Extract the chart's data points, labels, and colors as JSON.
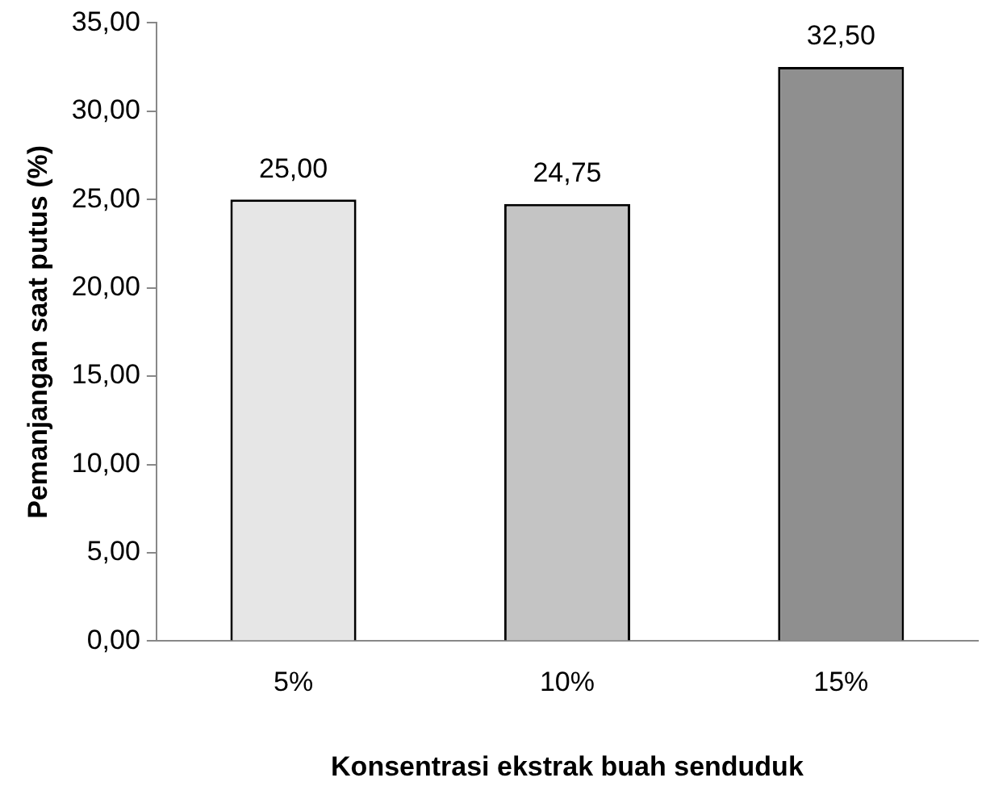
{
  "chart_data": {
    "type": "bar",
    "xlabel": "Konsentrasi ekstrak buah senduduk",
    "ylabel": "Pemanjangan saat putus (%)",
    "categories": [
      "5%",
      "10%",
      "15%"
    ],
    "values": [
      25.0,
      24.75,
      32.5
    ],
    "value_labels": [
      "25,00",
      "24,75",
      "32,50"
    ],
    "colors": [
      "#e6e6e6",
      "#c4c4c4",
      "#8f8f8f"
    ],
    "ylim": [
      0,
      35
    ],
    "yticks": [
      {
        "value": 0,
        "label": "0,00"
      },
      {
        "value": 5,
        "label": "5,00"
      },
      {
        "value": 10,
        "label": "10,00"
      },
      {
        "value": 15,
        "label": "15,00"
      },
      {
        "value": 20,
        "label": "20,00"
      },
      {
        "value": 25,
        "label": "25,00"
      },
      {
        "value": 30,
        "label": "30,00"
      },
      {
        "value": 35,
        "label": "35,00"
      }
    ],
    "grid": false,
    "legend": false
  }
}
